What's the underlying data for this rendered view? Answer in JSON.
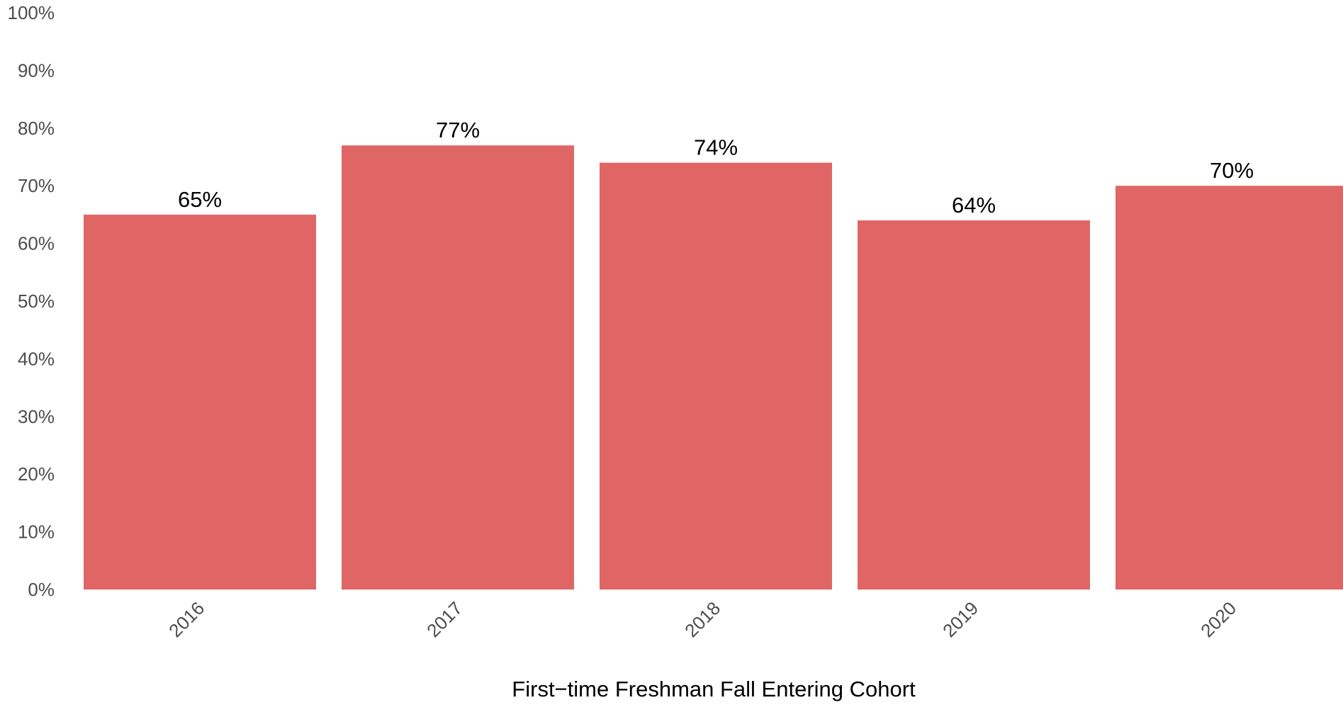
{
  "chart_data": {
    "type": "bar",
    "title": "",
    "xlabel": "First−time Freshman Fall Entering Cohort",
    "ylabel": "",
    "categories": [
      "2016",
      "2017",
      "2018",
      "2019",
      "2020"
    ],
    "values": [
      65,
      77,
      74,
      64,
      70
    ],
    "value_labels": [
      "65%",
      "77%",
      "74%",
      "64%",
      "70%"
    ],
    "ylim": [
      0,
      100
    ],
    "yticks": [
      0,
      10,
      20,
      30,
      40,
      50,
      60,
      70,
      80,
      90,
      100
    ],
    "ytick_labels": [
      "0%",
      "10%",
      "20%",
      "30%",
      "40%",
      "50%",
      "60%",
      "70%",
      "80%",
      "90%",
      "100%"
    ],
    "grid": false,
    "legend": "none",
    "bar_color": "#e06666"
  }
}
